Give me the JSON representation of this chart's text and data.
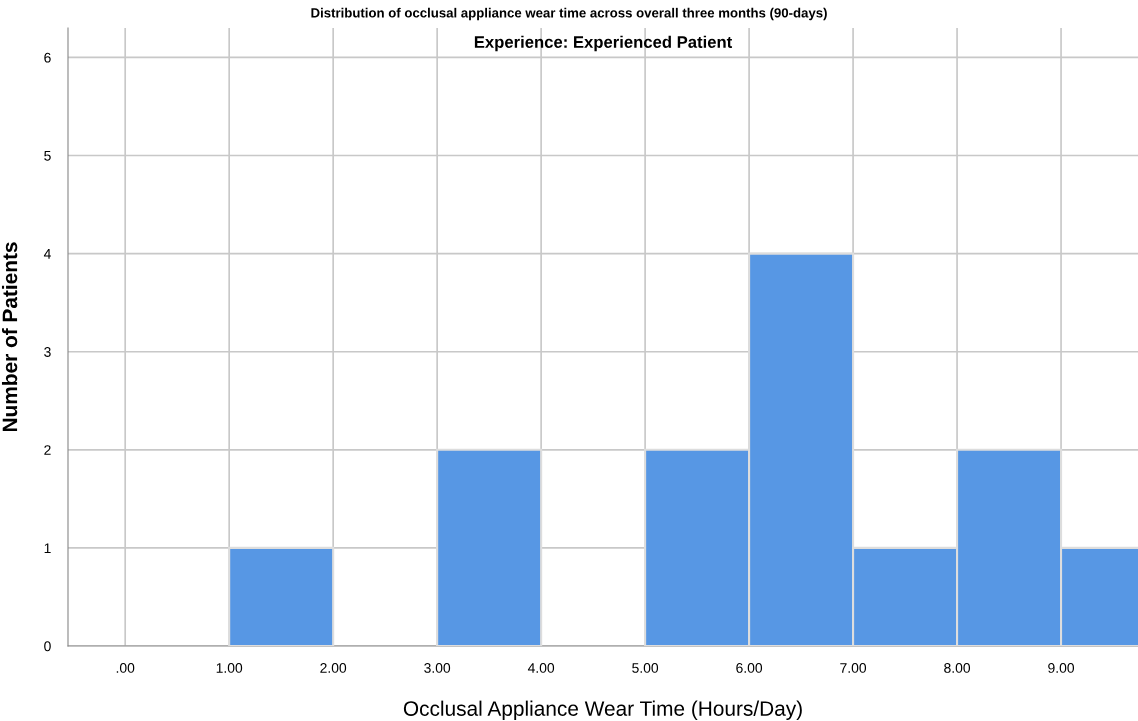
{
  "chart_data": {
    "type": "histogram",
    "title": "Distribution of occlusal appliance wear time across overall three months (90-days)",
    "subtitle": "Experience: Experienced Patient",
    "xlabel": "Occlusal Appliance Wear Time (Hours/Day)",
    "ylabel": "Number of Patients",
    "bins": [
      0,
      1,
      2,
      3,
      4,
      5,
      6,
      7,
      8,
      9,
      10
    ],
    "values": [
      0,
      1,
      0,
      2,
      0,
      2,
      4,
      1,
      2,
      1
    ],
    "color": "#5797e4",
    "xlim": [
      -0.55,
      9.74
    ],
    "xticks": [
      {
        "value": 0,
        "label": ".00"
      },
      {
        "value": 1,
        "label": "1.00"
      },
      {
        "value": 2,
        "label": "2.00"
      },
      {
        "value": 3,
        "label": "3.00"
      },
      {
        "value": 4,
        "label": "4.00"
      },
      {
        "value": 5,
        "label": "5.00"
      },
      {
        "value": 6,
        "label": "6.00"
      },
      {
        "value": 7,
        "label": "7.00"
      },
      {
        "value": 8,
        "label": "8.00"
      },
      {
        "value": 9,
        "label": "9.00"
      }
    ],
    "ylim": [
      0,
      6.3
    ],
    "yticks": [
      0,
      1,
      2,
      3,
      4,
      5,
      6
    ],
    "grid": true
  }
}
